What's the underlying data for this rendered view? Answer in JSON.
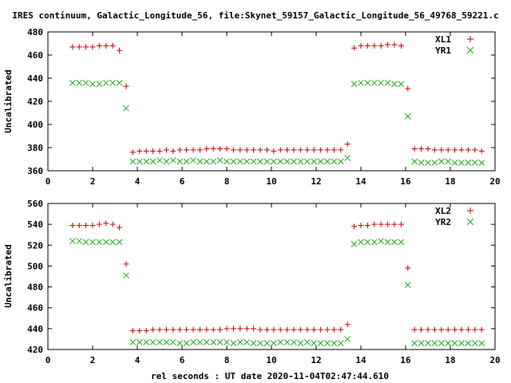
{
  "title": "IRES continuum, Galactic_Longitude_56, file:Skynet_59157_Galactic_Longitude_56_49768_59221.c",
  "xlabel": "rel seconds : UT date 2020-11-04T02:47:44.610",
  "colors": {
    "series1": "#cc0000",
    "series2": "#22aa22"
  },
  "chart_data": [
    {
      "type": "scatter",
      "ylabel": "Uncalibrated",
      "xlim": [
        0,
        20
      ],
      "ylim": [
        360,
        480
      ],
      "xticks": [
        0,
        2,
        4,
        6,
        8,
        10,
        12,
        14,
        16,
        18,
        20
      ],
      "yticks": [
        360,
        380,
        400,
        420,
        440,
        460,
        480
      ],
      "legend_position": "top-right",
      "series": [
        {
          "name": "XL1",
          "marker": "plus",
          "x": [
            1.1,
            1.4,
            1.7,
            2.0,
            2.3,
            2.6,
            2.9,
            3.2,
            3.5,
            3.8,
            4.1,
            4.4,
            4.7,
            5.0,
            5.3,
            5.6,
            5.9,
            6.2,
            6.5,
            6.8,
            7.1,
            7.4,
            7.7,
            8.0,
            8.3,
            8.6,
            8.9,
            9.2,
            9.5,
            9.8,
            10.1,
            10.4,
            10.7,
            11.0,
            11.3,
            11.6,
            11.9,
            12.2,
            12.5,
            12.8,
            13.1,
            13.4,
            13.7,
            14.0,
            14.3,
            14.6,
            14.9,
            15.2,
            15.5,
            15.8,
            16.1,
            16.4,
            16.7,
            17.0,
            17.3,
            17.6,
            17.9,
            18.2,
            18.5,
            18.8,
            19.1,
            19.4
          ],
          "y": [
            467,
            467,
            467,
            467,
            468,
            468,
            468,
            464,
            433,
            376,
            377,
            377,
            377,
            377,
            378,
            377,
            378,
            378,
            378,
            378,
            379,
            379,
            379,
            379,
            378,
            378,
            378,
            378,
            378,
            378,
            377,
            378,
            378,
            378,
            378,
            378,
            378,
            378,
            378,
            378,
            378,
            383,
            466,
            468,
            468,
            468,
            468,
            469,
            469,
            468,
            431,
            379,
            379,
            379,
            378,
            378,
            378,
            378,
            378,
            378,
            378,
            377
          ]
        },
        {
          "name": "YR1",
          "marker": "cross",
          "x": [
            1.1,
            1.4,
            1.7,
            2.0,
            2.3,
            2.6,
            2.9,
            3.2,
            3.5,
            3.8,
            4.1,
            4.4,
            4.7,
            5.0,
            5.3,
            5.6,
            5.9,
            6.2,
            6.5,
            6.8,
            7.1,
            7.4,
            7.7,
            8.0,
            8.3,
            8.6,
            8.9,
            9.2,
            9.5,
            9.8,
            10.1,
            10.4,
            10.7,
            11.0,
            11.3,
            11.6,
            11.9,
            12.2,
            12.5,
            12.8,
            13.1,
            13.4,
            13.7,
            14.0,
            14.3,
            14.6,
            14.9,
            15.2,
            15.5,
            15.8,
            16.1,
            16.4,
            16.7,
            17.0,
            17.3,
            17.6,
            17.9,
            18.2,
            18.5,
            18.8,
            19.1,
            19.4
          ],
          "y": [
            436,
            436,
            436,
            435,
            435,
            436,
            436,
            436,
            414,
            368,
            368,
            368,
            368,
            369,
            368,
            369,
            368,
            368,
            369,
            368,
            368,
            368,
            369,
            368,
            368,
            368,
            368,
            368,
            368,
            368,
            368,
            368,
            368,
            368,
            368,
            368,
            368,
            368,
            368,
            368,
            368,
            371,
            435,
            436,
            436,
            436,
            436,
            436,
            435,
            435,
            407,
            368,
            367,
            367,
            367,
            368,
            368,
            367,
            367,
            367,
            367,
            367
          ]
        }
      ]
    },
    {
      "type": "scatter",
      "ylabel": "Uncalibrated",
      "xlim": [
        0,
        20
      ],
      "ylim": [
        420,
        560
      ],
      "xticks": [
        0,
        2,
        4,
        6,
        8,
        10,
        12,
        14,
        16,
        18,
        20
      ],
      "yticks": [
        420,
        440,
        460,
        480,
        500,
        520,
        540,
        560
      ],
      "legend_position": "top-right",
      "series": [
        {
          "name": "XL2",
          "marker": "plus",
          "x": [
            1.1,
            1.4,
            1.7,
            2.0,
            2.3,
            2.6,
            2.9,
            3.2,
            3.5,
            3.8,
            4.1,
            4.4,
            4.7,
            5.0,
            5.3,
            5.6,
            5.9,
            6.2,
            6.5,
            6.8,
            7.1,
            7.4,
            7.7,
            8.0,
            8.3,
            8.6,
            8.9,
            9.2,
            9.5,
            9.8,
            10.1,
            10.4,
            10.7,
            11.0,
            11.3,
            11.6,
            11.9,
            12.2,
            12.5,
            12.8,
            13.1,
            13.4,
            13.7,
            14.0,
            14.3,
            14.6,
            14.9,
            15.2,
            15.5,
            15.8,
            16.1,
            16.4,
            16.7,
            17.0,
            17.3,
            17.6,
            17.9,
            18.2,
            18.5,
            18.8,
            19.1,
            19.4
          ],
          "y": [
            539,
            539,
            539,
            539,
            540,
            541,
            540,
            537,
            502,
            438,
            438,
            438,
            439,
            439,
            439,
            439,
            439,
            439,
            439,
            439,
            439,
            439,
            439,
            440,
            440,
            440,
            440,
            440,
            439,
            439,
            439,
            439,
            439,
            439,
            439,
            439,
            439,
            439,
            439,
            439,
            439,
            444,
            538,
            539,
            539,
            540,
            540,
            540,
            540,
            540,
            498,
            439,
            439,
            439,
            439,
            439,
            439,
            439,
            439,
            439,
            439,
            439
          ]
        },
        {
          "name": "YR2",
          "marker": "cross",
          "x": [
            1.1,
            1.4,
            1.7,
            2.0,
            2.3,
            2.6,
            2.9,
            3.2,
            3.5,
            3.8,
            4.1,
            4.4,
            4.7,
            5.0,
            5.3,
            5.6,
            5.9,
            6.2,
            6.5,
            6.8,
            7.1,
            7.4,
            7.7,
            8.0,
            8.3,
            8.6,
            8.9,
            9.2,
            9.5,
            9.8,
            10.1,
            10.4,
            10.7,
            11.0,
            11.3,
            11.6,
            11.9,
            12.2,
            12.5,
            12.8,
            13.1,
            13.4,
            13.7,
            14.0,
            14.3,
            14.6,
            14.9,
            15.2,
            15.5,
            15.8,
            16.1,
            16.4,
            16.7,
            17.0,
            17.3,
            17.6,
            17.9,
            18.2,
            18.5,
            18.8,
            19.1,
            19.4
          ],
          "y": [
            524,
            524,
            523,
            523,
            523,
            523,
            523,
            523,
            491,
            427,
            427,
            427,
            427,
            427,
            427,
            427,
            426,
            426,
            427,
            427,
            427,
            427,
            427,
            427,
            426,
            427,
            427,
            426,
            426,
            426,
            426,
            427,
            427,
            427,
            426,
            427,
            426,
            426,
            426,
            426,
            426,
            430,
            521,
            523,
            523,
            523,
            524,
            523,
            523,
            523,
            482,
            426,
            426,
            426,
            426,
            426,
            426,
            426,
            426,
            426,
            426,
            426
          ]
        }
      ]
    }
  ]
}
